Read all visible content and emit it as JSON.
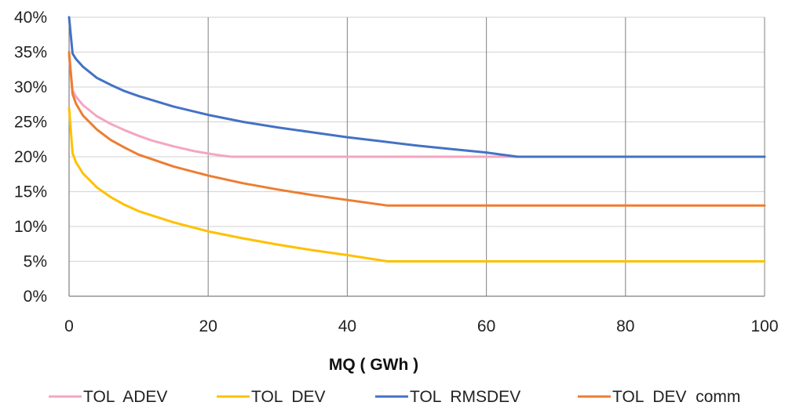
{
  "chart_data": {
    "type": "line",
    "title": "",
    "xlabel": "MQ ( GWh )",
    "ylabel": "",
    "xlim": [
      0,
      100
    ],
    "ylim": [
      0,
      40
    ],
    "x_ticks": [
      0,
      20,
      40,
      60,
      80,
      100
    ],
    "y_ticks": [
      0,
      5,
      10,
      15,
      20,
      25,
      30,
      35,
      40
    ],
    "y_tick_suffix": "%",
    "grid": "vertical",
    "legend": "bottom",
    "series": [
      {
        "name": "TOL  ADEV",
        "color": "#F4A6C0",
        "x": [
          0,
          0.5,
          1,
          2,
          4,
          6,
          8,
          10,
          12,
          15,
          18,
          21,
          23.3,
          30,
          40,
          50,
          60,
          70,
          80,
          90,
          100
        ],
        "y": [
          34.5,
          29.5,
          28.6,
          27.4,
          25.8,
          24.7,
          23.8,
          23.0,
          22.3,
          21.5,
          20.8,
          20.3,
          20,
          20,
          20,
          20,
          20,
          20,
          20,
          20,
          20
        ]
      },
      {
        "name": "TOL  DEV",
        "color": "#FFC000",
        "x": [
          0,
          0.5,
          1,
          2,
          4,
          6,
          8,
          10,
          15,
          20,
          25,
          30,
          35,
          40,
          45.8,
          50,
          60,
          70,
          80,
          90,
          100
        ],
        "y": [
          27,
          20.5,
          19.2,
          17.6,
          15.6,
          14.2,
          13.1,
          12.2,
          10.6,
          9.3,
          8.3,
          7.4,
          6.6,
          5.9,
          5,
          5,
          5,
          5,
          5,
          5,
          5
        ]
      },
      {
        "name": "TOL  RMSDEV",
        "color": "#4472C4",
        "x": [
          0,
          0.5,
          1,
          2,
          4,
          6,
          8,
          10,
          15,
          20,
          25,
          30,
          35,
          40,
          45,
          50,
          55,
          60,
          64.5,
          70,
          80,
          90,
          100
        ],
        "y": [
          40,
          34.8,
          34.0,
          32.9,
          31.3,
          30.3,
          29.4,
          28.7,
          27.2,
          26.0,
          25.0,
          24.2,
          23.5,
          22.8,
          22.2,
          21.6,
          21.1,
          20.6,
          20,
          20,
          20,
          20,
          20
        ]
      },
      {
        "name": "TOL  DEV  comm",
        "color": "#ED7D31",
        "x": [
          0,
          0.5,
          1,
          2,
          4,
          6,
          8,
          10,
          15,
          20,
          25,
          30,
          35,
          40,
          45.8,
          50,
          60,
          70,
          80,
          90,
          100
        ],
        "y": [
          35,
          29,
          27.6,
          25.9,
          23.9,
          22.4,
          21.3,
          20.3,
          18.6,
          17.3,
          16.2,
          15.3,
          14.5,
          13.8,
          13,
          13,
          13,
          13,
          13,
          13,
          13
        ]
      }
    ]
  }
}
